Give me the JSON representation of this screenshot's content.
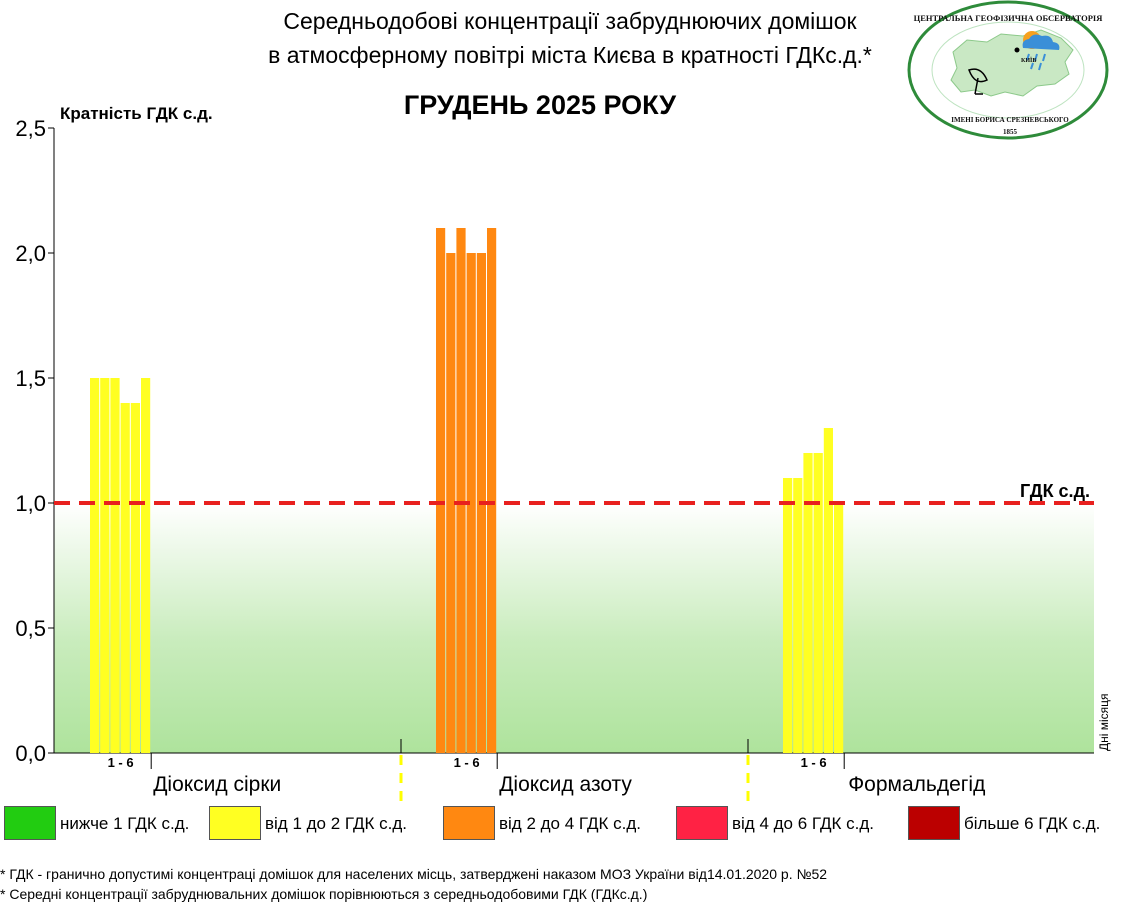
{
  "title_line1": "Середньодобові концентрації забруднюючих домішок",
  "title_line2": "в атмосферному повітрі міста Києва в кратності ГДКс.д.*",
  "logo": {
    "text_top": "ЦЕНТРАЛЬНА ГЕОФІЗИЧНА ОБСЕРВАТОРІЯ",
    "text_bottom": "ІМЕНІ БОРИСА СРЕЗНЕВСЬКОГО",
    "city": "КИЇВ",
    "year": "1855"
  },
  "chart_data": {
    "type": "bar",
    "title": "ГРУДЕНЬ 2025 РОКУ",
    "ylabel": "Кратність ГДК с.д.",
    "xlabel": "Дні місяця",
    "ylim": [
      0,
      2.5
    ],
    "yticks": [
      "0,0",
      "0,5",
      "1,0",
      "1,5",
      "2,0",
      "2,5"
    ],
    "threshold": {
      "value": 1.0,
      "label": "ГДК с.д.",
      "color": "#e8201e"
    },
    "groups": [
      {
        "name": "Діоксид сірки",
        "days_label": "1 - 6",
        "values": [
          1.5,
          1.5,
          1.5,
          1.4,
          1.4,
          1.5
        ]
      },
      {
        "name": "Діоксид азоту",
        "days_label": "1 - 6",
        "values": [
          2.1,
          2.0,
          2.1,
          2.0,
          2.0,
          2.1
        ]
      },
      {
        "name": "Формальдегід",
        "days_label": "1 - 6",
        "values": [
          1.1,
          1.1,
          1.2,
          1.2,
          1.3,
          1.0
        ]
      }
    ]
  },
  "legend": [
    {
      "label": "нижче 1 ГДК с.д.",
      "color": "#22cc11"
    },
    {
      "label": "від 1 до 2 ГДК с.д.",
      "color": "#ffff22"
    },
    {
      "label": "від 2 до 4 ГДК с.д.",
      "color": "#ff8811"
    },
    {
      "label": "від 4 до 6 ГДК с.д.",
      "color": "#ff2244"
    },
    {
      "label": "більше 6 ГДК с.д.",
      "color": "#bb0000"
    }
  ],
  "footnotes": [
    "* ГДК - гранично допустимі концентраці домішок для населених місць, затверджені наказом МОЗ України від14.01.2020 р. №52",
    "* Середні концентрації забруднювальних домішок порівнюються з середньодобовими  ГДК (ГДКс.д.)"
  ]
}
